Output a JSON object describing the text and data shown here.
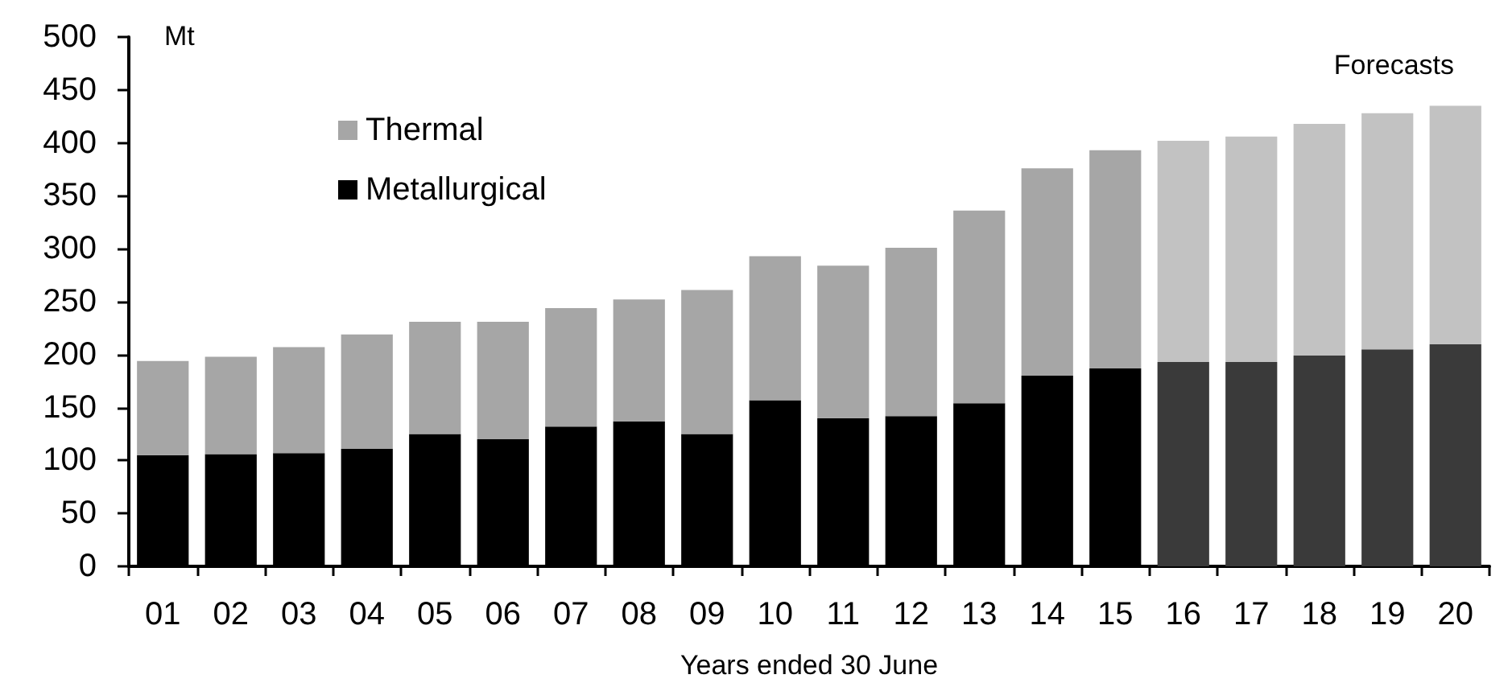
{
  "chart_data": {
    "type": "bar",
    "stacked": true,
    "xlabel": "Years ended 30 June",
    "ylabel": "Mt",
    "categories": [
      "01",
      "02",
      "03",
      "04",
      "05",
      "06",
      "07",
      "08",
      "09",
      "10",
      "11",
      "12",
      "13",
      "14",
      "15",
      "16",
      "17",
      "18",
      "19",
      "20"
    ],
    "series": [
      {
        "name": "Metallurgical",
        "color": "#000000",
        "colors": [
          "#000000",
          "#000000",
          "#000000",
          "#000000",
          "#000000",
          "#000000",
          "#000000",
          "#000000",
          "#000000",
          "#000000",
          "#000000",
          "#000000",
          "#000000",
          "#000000",
          "#000000",
          "#3a3a3a",
          "#3a3a3a",
          "#3a3a3a",
          "#3a3a3a",
          "#3a3a3a"
        ],
        "values": [
          105,
          106,
          107,
          111,
          125,
          120,
          132,
          137,
          125,
          157,
          140,
          142,
          154,
          180,
          187,
          193,
          193,
          199,
          205,
          210
        ]
      },
      {
        "name": "Thermal",
        "color": "#a6a6a6",
        "colors": [
          "#a6a6a6",
          "#a6a6a6",
          "#a6a6a6",
          "#a6a6a6",
          "#a6a6a6",
          "#a6a6a6",
          "#a6a6a6",
          "#a6a6a6",
          "#a6a6a6",
          "#a6a6a6",
          "#a6a6a6",
          "#a6a6a6",
          "#a6a6a6",
          "#a6a6a6",
          "#a6a6a6",
          "#c2c2c2",
          "#c2c2c2",
          "#c2c2c2",
          "#c2c2c2",
          "#c2c2c2"
        ],
        "values": [
          89,
          92,
          100,
          108,
          106,
          111,
          112,
          115,
          136,
          136,
          144,
          159,
          182,
          196,
          206,
          209,
          213,
          219,
          223,
          225
        ]
      }
    ],
    "ylim": [
      0,
      500
    ],
    "yticks": [
      0,
      50,
      100,
      150,
      200,
      250,
      300,
      350,
      400,
      450,
      500
    ],
    "grid": false,
    "legend": "top left",
    "annotations": [
      "Forecasts"
    ]
  }
}
